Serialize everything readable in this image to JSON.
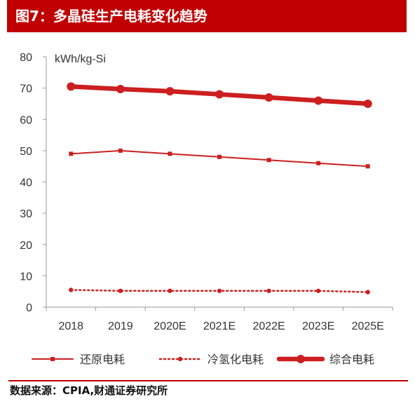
{
  "title": "图7：多晶硅生产电耗变化趋势",
  "source": "数据来源：CPIA,财通证券研究所",
  "colors": {
    "brand": "#c00000",
    "series": "#cc1f1f",
    "text": "#333333"
  },
  "chart_data": {
    "type": "line",
    "title": "",
    "xlabel": "",
    "ylabel": "kWh/kg-Si",
    "ylim": [
      0,
      80
    ],
    "yticks": [
      0,
      10,
      20,
      30,
      40,
      50,
      60,
      70,
      80
    ],
    "grid": false,
    "legend_position": "bottom",
    "categories": [
      "2018",
      "2019",
      "2020E",
      "2021E",
      "2022E",
      "2023E",
      "2025E"
    ],
    "series": [
      {
        "name": "还原电耗",
        "style": "thin-line-square",
        "values": [
          49,
          50,
          49,
          48,
          47,
          46,
          45
        ]
      },
      {
        "name": "冷氢化电耗",
        "style": "dotted-circle",
        "values": [
          5.5,
          5.2,
          5.2,
          5.2,
          5.2,
          5.2,
          4.8
        ]
      },
      {
        "name": "综合电耗",
        "style": "thick-line-circle",
        "values": [
          70.5,
          69.7,
          69,
          68,
          67,
          66,
          65
        ]
      }
    ]
  }
}
